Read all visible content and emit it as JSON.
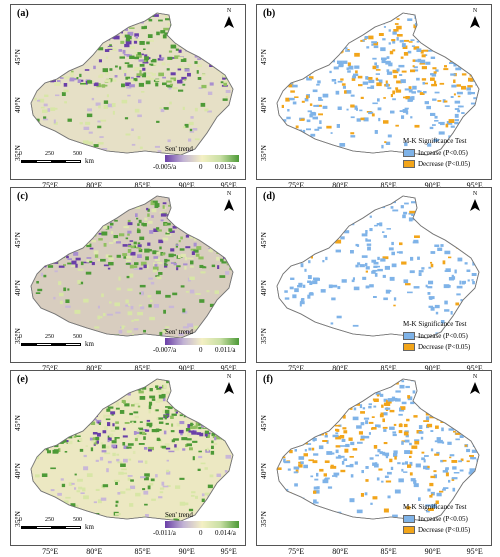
{
  "panels": [
    {
      "id": "a",
      "label": "(a)",
      "type": "trend",
      "legend": {
        "title": "Sen' trend",
        "min": "-0.005/a",
        "mid": "0",
        "max": "0.013/a"
      }
    },
    {
      "id": "b",
      "label": "(b)",
      "type": "mk"
    },
    {
      "id": "c",
      "label": "(c)",
      "type": "trend",
      "legend": {
        "title": "Sen' trend",
        "min": "-0.007/a",
        "mid": "0",
        "max": "0.011/a"
      }
    },
    {
      "id": "d",
      "label": "(d)",
      "type": "mk"
    },
    {
      "id": "e",
      "label": "(e)",
      "type": "trend",
      "legend": {
        "title": "Sen' trend",
        "min": "-0.011/a",
        "mid": "0",
        "max": "0.014/a"
      }
    },
    {
      "id": "f",
      "label": "(f)",
      "type": "mk"
    }
  ],
  "north_label": "N",
  "lat_labels": [
    "45°N",
    "40°N",
    "35°N"
  ],
  "lon_labels": [
    "75°E",
    "80°E",
    "85°E",
    "90°E",
    "95°E"
  ],
  "scale": {
    "ticks": [
      "0",
      "250",
      "500"
    ],
    "unit": "km"
  },
  "mk_legend": {
    "title": "M-K Significance Test",
    "increase": "Increase (P<0.05)",
    "decrease": "Decrease (P<0.05)"
  },
  "colors": {
    "increase": "#7fb3e8",
    "decrease": "#f2a51a",
    "trend_neg": "#6a3fa8",
    "trend_zero": "#f4f0c4",
    "trend_pos": "#4d9a37",
    "desert": "#e6e0c6",
    "outline": "#777777"
  }
}
